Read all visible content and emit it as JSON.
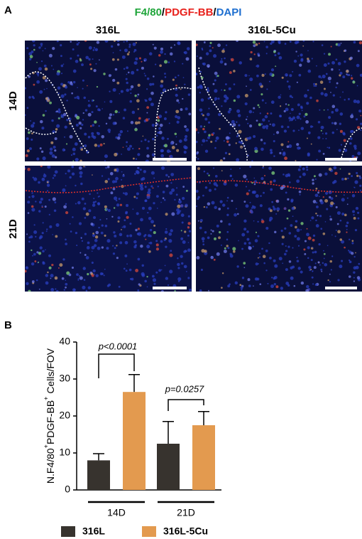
{
  "panel_a": {
    "label": "A",
    "stain": [
      {
        "text": "F4/80",
        "color": "#1fa53a"
      },
      {
        "text": "/",
        "color": "#000000"
      },
      {
        "text": "PDGF-BB",
        "color": "#e8211c"
      },
      {
        "text": "/",
        "color": "#000000"
      },
      {
        "text": "DAPI",
        "color": "#1e6fd0"
      }
    ],
    "columns": [
      "316L",
      "316L-5Cu"
    ],
    "rows": [
      "14D",
      "21D"
    ]
  },
  "chart_data": {
    "type": "bar",
    "panel_label": "B",
    "ylabel": [
      "N.F4/80",
      "+",
      "PDGF-BB",
      "+",
      " Cells/FOV"
    ],
    "categories": [
      "14D",
      "21D"
    ],
    "series": [
      {
        "name": "316L",
        "color": "#37332e",
        "values": [
          8,
          12.5
        ],
        "errors": [
          1.8,
          6
        ]
      },
      {
        "name": "316L-5Cu",
        "color": "#e39a4f",
        "values": [
          26.5,
          17.5
        ],
        "errors": [
          4.7,
          3.7
        ]
      }
    ],
    "annotations": [
      "p<0.0001",
      "p=0.0257"
    ],
    "ylim": [
      0,
      40
    ],
    "yticks": [
      0,
      10,
      20,
      30,
      40
    ]
  }
}
